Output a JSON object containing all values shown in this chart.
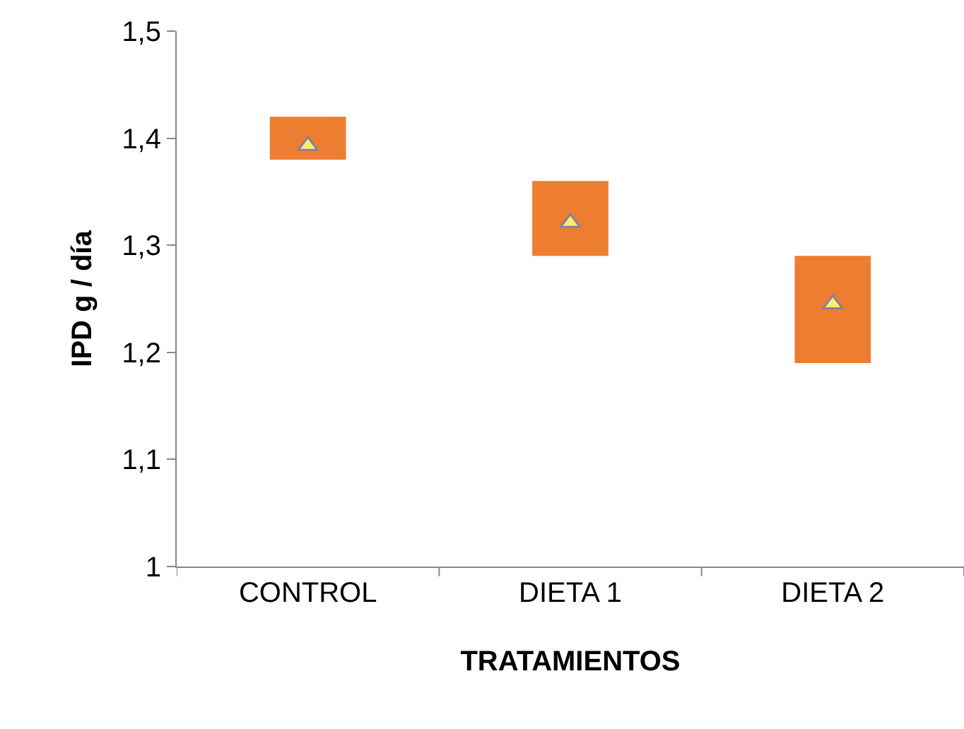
{
  "chart_data": {
    "type": "bar",
    "xlabel": "TRATAMIENTOS",
    "ylabel": "IPD g / día",
    "categories": [
      "CONTROL",
      "DIETA 1",
      "DIETA 2"
    ],
    "series": [
      {
        "color": "#ed7d31",
        "base": [
          1.38,
          1.29,
          1.19
        ],
        "values": [
          0.04,
          0.07,
          0.1
        ]
      },
      {
        "type": "scatter",
        "color": "#f7ef6a",
        "marker": "triangle",
        "x": [
          "CONTROL",
          "DIETA 1",
          "DIETA 2"
        ],
        "values": [
          1.393,
          1.321,
          1.245
        ]
      }
    ],
    "ylim": [
      1,
      1.5
    ],
    "yticks": [
      1,
      {
        "value": 1.1,
        "label": "1,1"
      },
      {
        "value": 1.2,
        "label": "1,2"
      },
      {
        "value": 1.3,
        "label": "1,3"
      },
      {
        "value": 1.4,
        "label": "1,4"
      },
      {
        "value": 1.5,
        "label": "1,5"
      }
    ]
  }
}
